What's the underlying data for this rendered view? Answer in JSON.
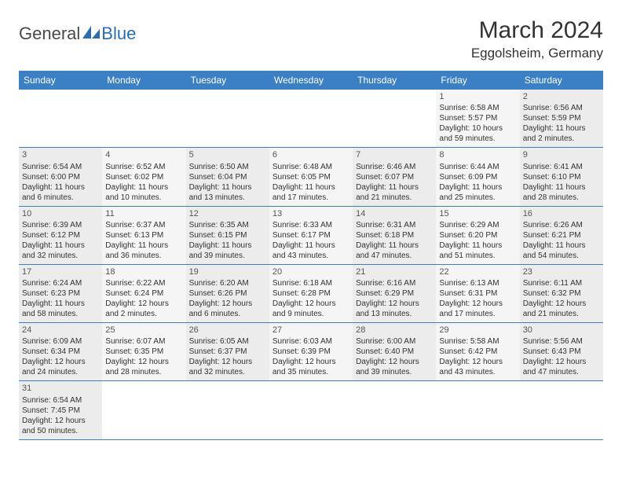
{
  "logo": {
    "text1": "General",
    "text2": "Blue"
  },
  "title": "March 2024",
  "location": "Eggolsheim, Germany",
  "colors": {
    "header_bg": "#3b7fc4",
    "header_text": "#ffffff",
    "row_border": "#3b7fc4",
    "cell_odd_bg": "#ececec",
    "cell_even_bg": "#f5f5f5",
    "text": "#333333",
    "logo_dark": "#4a4a4a",
    "logo_blue": "#2a6db5"
  },
  "day_headers": [
    "Sunday",
    "Monday",
    "Tuesday",
    "Wednesday",
    "Thursday",
    "Friday",
    "Saturday"
  ],
  "weeks": [
    [
      {
        "empty": true
      },
      {
        "empty": true
      },
      {
        "empty": true
      },
      {
        "empty": true
      },
      {
        "empty": true
      },
      {
        "num": "1",
        "sunrise": "Sunrise: 6:58 AM",
        "sunset": "Sunset: 5:57 PM",
        "daylight1": "Daylight: 10 hours",
        "daylight2": "and 59 minutes."
      },
      {
        "num": "2",
        "sunrise": "Sunrise: 6:56 AM",
        "sunset": "Sunset: 5:59 PM",
        "daylight1": "Daylight: 11 hours",
        "daylight2": "and 2 minutes."
      }
    ],
    [
      {
        "num": "3",
        "sunrise": "Sunrise: 6:54 AM",
        "sunset": "Sunset: 6:00 PM",
        "daylight1": "Daylight: 11 hours",
        "daylight2": "and 6 minutes."
      },
      {
        "num": "4",
        "sunrise": "Sunrise: 6:52 AM",
        "sunset": "Sunset: 6:02 PM",
        "daylight1": "Daylight: 11 hours",
        "daylight2": "and 10 minutes."
      },
      {
        "num": "5",
        "sunrise": "Sunrise: 6:50 AM",
        "sunset": "Sunset: 6:04 PM",
        "daylight1": "Daylight: 11 hours",
        "daylight2": "and 13 minutes."
      },
      {
        "num": "6",
        "sunrise": "Sunrise: 6:48 AM",
        "sunset": "Sunset: 6:05 PM",
        "daylight1": "Daylight: 11 hours",
        "daylight2": "and 17 minutes."
      },
      {
        "num": "7",
        "sunrise": "Sunrise: 6:46 AM",
        "sunset": "Sunset: 6:07 PM",
        "daylight1": "Daylight: 11 hours",
        "daylight2": "and 21 minutes."
      },
      {
        "num": "8",
        "sunrise": "Sunrise: 6:44 AM",
        "sunset": "Sunset: 6:09 PM",
        "daylight1": "Daylight: 11 hours",
        "daylight2": "and 25 minutes."
      },
      {
        "num": "9",
        "sunrise": "Sunrise: 6:41 AM",
        "sunset": "Sunset: 6:10 PM",
        "daylight1": "Daylight: 11 hours",
        "daylight2": "and 28 minutes."
      }
    ],
    [
      {
        "num": "10",
        "sunrise": "Sunrise: 6:39 AM",
        "sunset": "Sunset: 6:12 PM",
        "daylight1": "Daylight: 11 hours",
        "daylight2": "and 32 minutes."
      },
      {
        "num": "11",
        "sunrise": "Sunrise: 6:37 AM",
        "sunset": "Sunset: 6:13 PM",
        "daylight1": "Daylight: 11 hours",
        "daylight2": "and 36 minutes."
      },
      {
        "num": "12",
        "sunrise": "Sunrise: 6:35 AM",
        "sunset": "Sunset: 6:15 PM",
        "daylight1": "Daylight: 11 hours",
        "daylight2": "and 39 minutes."
      },
      {
        "num": "13",
        "sunrise": "Sunrise: 6:33 AM",
        "sunset": "Sunset: 6:17 PM",
        "daylight1": "Daylight: 11 hours",
        "daylight2": "and 43 minutes."
      },
      {
        "num": "14",
        "sunrise": "Sunrise: 6:31 AM",
        "sunset": "Sunset: 6:18 PM",
        "daylight1": "Daylight: 11 hours",
        "daylight2": "and 47 minutes."
      },
      {
        "num": "15",
        "sunrise": "Sunrise: 6:29 AM",
        "sunset": "Sunset: 6:20 PM",
        "daylight1": "Daylight: 11 hours",
        "daylight2": "and 51 minutes."
      },
      {
        "num": "16",
        "sunrise": "Sunrise: 6:26 AM",
        "sunset": "Sunset: 6:21 PM",
        "daylight1": "Daylight: 11 hours",
        "daylight2": "and 54 minutes."
      }
    ],
    [
      {
        "num": "17",
        "sunrise": "Sunrise: 6:24 AM",
        "sunset": "Sunset: 6:23 PM",
        "daylight1": "Daylight: 11 hours",
        "daylight2": "and 58 minutes."
      },
      {
        "num": "18",
        "sunrise": "Sunrise: 6:22 AM",
        "sunset": "Sunset: 6:24 PM",
        "daylight1": "Daylight: 12 hours",
        "daylight2": "and 2 minutes."
      },
      {
        "num": "19",
        "sunrise": "Sunrise: 6:20 AM",
        "sunset": "Sunset: 6:26 PM",
        "daylight1": "Daylight: 12 hours",
        "daylight2": "and 6 minutes."
      },
      {
        "num": "20",
        "sunrise": "Sunrise: 6:18 AM",
        "sunset": "Sunset: 6:28 PM",
        "daylight1": "Daylight: 12 hours",
        "daylight2": "and 9 minutes."
      },
      {
        "num": "21",
        "sunrise": "Sunrise: 6:16 AM",
        "sunset": "Sunset: 6:29 PM",
        "daylight1": "Daylight: 12 hours",
        "daylight2": "and 13 minutes."
      },
      {
        "num": "22",
        "sunrise": "Sunrise: 6:13 AM",
        "sunset": "Sunset: 6:31 PM",
        "daylight1": "Daylight: 12 hours",
        "daylight2": "and 17 minutes."
      },
      {
        "num": "23",
        "sunrise": "Sunrise: 6:11 AM",
        "sunset": "Sunset: 6:32 PM",
        "daylight1": "Daylight: 12 hours",
        "daylight2": "and 21 minutes."
      }
    ],
    [
      {
        "num": "24",
        "sunrise": "Sunrise: 6:09 AM",
        "sunset": "Sunset: 6:34 PM",
        "daylight1": "Daylight: 12 hours",
        "daylight2": "and 24 minutes."
      },
      {
        "num": "25",
        "sunrise": "Sunrise: 6:07 AM",
        "sunset": "Sunset: 6:35 PM",
        "daylight1": "Daylight: 12 hours",
        "daylight2": "and 28 minutes."
      },
      {
        "num": "26",
        "sunrise": "Sunrise: 6:05 AM",
        "sunset": "Sunset: 6:37 PM",
        "daylight1": "Daylight: 12 hours",
        "daylight2": "and 32 minutes."
      },
      {
        "num": "27",
        "sunrise": "Sunrise: 6:03 AM",
        "sunset": "Sunset: 6:39 PM",
        "daylight1": "Daylight: 12 hours",
        "daylight2": "and 35 minutes."
      },
      {
        "num": "28",
        "sunrise": "Sunrise: 6:00 AM",
        "sunset": "Sunset: 6:40 PM",
        "daylight1": "Daylight: 12 hours",
        "daylight2": "and 39 minutes."
      },
      {
        "num": "29",
        "sunrise": "Sunrise: 5:58 AM",
        "sunset": "Sunset: 6:42 PM",
        "daylight1": "Daylight: 12 hours",
        "daylight2": "and 43 minutes."
      },
      {
        "num": "30",
        "sunrise": "Sunrise: 5:56 AM",
        "sunset": "Sunset: 6:43 PM",
        "daylight1": "Daylight: 12 hours",
        "daylight2": "and 47 minutes."
      }
    ],
    [
      {
        "num": "31",
        "sunrise": "Sunrise: 6:54 AM",
        "sunset": "Sunset: 7:45 PM",
        "daylight1": "Daylight: 12 hours",
        "daylight2": "and 50 minutes."
      },
      {
        "empty": true
      },
      {
        "empty": true
      },
      {
        "empty": true
      },
      {
        "empty": true
      },
      {
        "empty": true
      },
      {
        "empty": true
      }
    ]
  ]
}
